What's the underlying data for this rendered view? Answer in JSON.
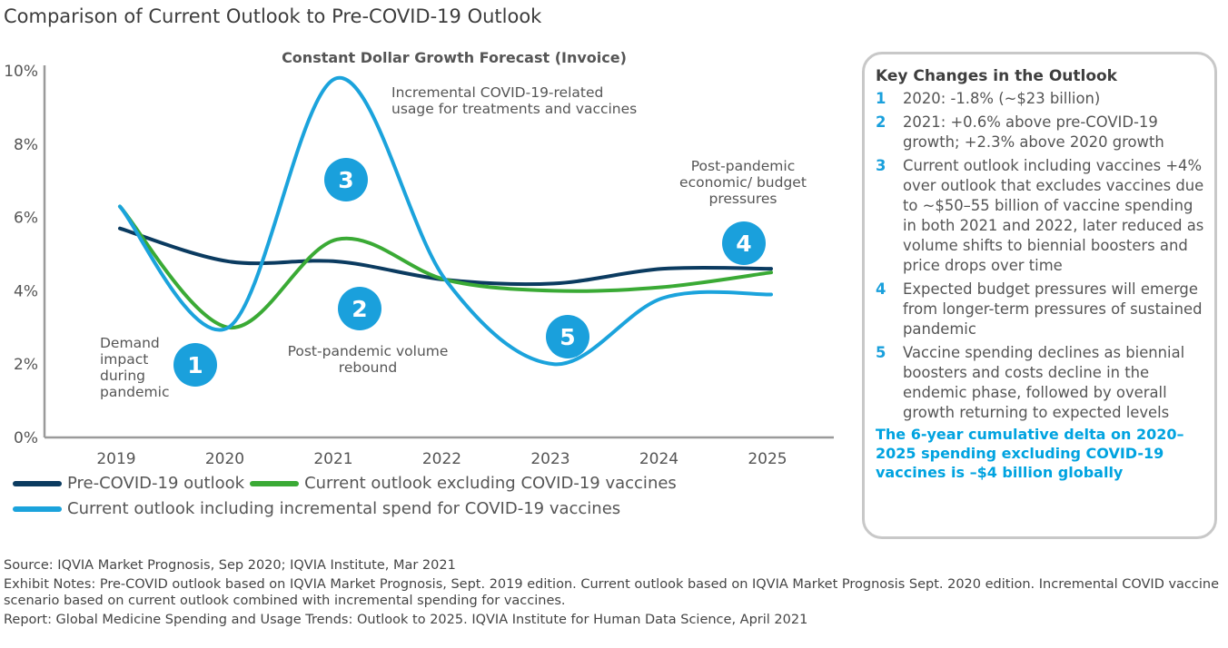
{
  "title": "Comparison of Current Outlook to Pre-COVID-19 Outlook",
  "colors": {
    "pre": "#0b3b60",
    "excl": "#3aaa35",
    "incl": "#1ba3dc",
    "marker": "#1aa0dc",
    "axis": "#9a9a9a"
  },
  "chart_data": {
    "type": "line",
    "title": "Constant Dollar Growth Forecast (Invoice)",
    "xlabel": "",
    "ylabel": "",
    "categories": [
      "2019",
      "2020",
      "2021",
      "2022",
      "2023",
      "2024",
      "2025"
    ],
    "ylim": [
      0,
      10
    ],
    "yticks": [
      "0%",
      "2%",
      "4%",
      "6%",
      "8%",
      "10%"
    ],
    "series": [
      {
        "name": "Pre-COVID-19 outlook",
        "values": [
          5.7,
          4.8,
          4.8,
          4.3,
          4.2,
          4.6,
          4.6
        ],
        "color": "#0b3b60"
      },
      {
        "name": "Current outlook excluding COVID-19 vaccines",
        "values": [
          6.3,
          3.0,
          5.4,
          4.3,
          4.0,
          4.1,
          4.5
        ],
        "color": "#3aaa35"
      },
      {
        "name": "Current outlook including incremental spend for COVID-19 vaccines",
        "values": [
          6.3,
          3.0,
          9.8,
          4.3,
          2.0,
          3.8,
          3.9
        ],
        "color": "#1ba3dc"
      }
    ],
    "annotations": [
      {
        "id": "1",
        "label": "Demand impact during pandemic",
        "lines": [
          "Demand",
          "impact",
          "during",
          "pandemic"
        ]
      },
      {
        "id": "2",
        "label": "Post-pandemic volume rebound",
        "lines": [
          "Post-pandemic volume",
          "rebound"
        ]
      },
      {
        "id": "3",
        "label": "Incremental COVID-19-related usage for treatments and vaccines",
        "lines": [
          "Incremental COVID-19-related",
          "usage for treatments and vaccines"
        ]
      },
      {
        "id": "4",
        "label": "Post-pandemic economic/ budget pressures",
        "lines": [
          "Post-pandemic",
          "economic/ budget",
          "pressures"
        ]
      },
      {
        "id": "5",
        "label": "",
        "lines": []
      }
    ]
  },
  "legend": {
    "pre": "Pre-COVID-19 outlook",
    "excl": "Current outlook excluding COVID-19 vaccines",
    "incl": "Current outlook including incremental spend for COVID-19 vaccines"
  },
  "panel": {
    "heading": "Key Changes in the Outlook",
    "items": [
      {
        "num": "1",
        "text": "2020: -1.8% (~$23 billion)"
      },
      {
        "num": "2",
        "text": "2021: +0.6% above pre-COVID-19 growth; +2.3% above 2020 growth"
      },
      {
        "num": "3",
        "text": "Current outlook including vaccines +4% over outlook that excludes vaccines due to ~$50–55 billion of vaccine spending in both 2021 and 2022, later reduced as volume shifts to biennial boosters and price drops over time"
      },
      {
        "num": "4",
        "text": "Expected budget pressures will emerge from longer-term pressures of sustained pandemic"
      },
      {
        "num": "5",
        "text": "Vaccine spending declines as biennial boosters and costs decline in the endemic phase, followed by overall growth returning to expected levels"
      }
    ],
    "summary": "The 6-year cumulative delta on 2020–2025 spending excluding COVID-19 vaccines is –$4 billion  globally"
  },
  "notes": {
    "source": "Source: IQVIA Market Prognosis, Sep 2020; IQVIA Institute, Mar 2021",
    "exhibit": "Exhibit Notes: Pre-COVID outlook based on IQVIA Market Prognosis, Sept. 2019 edition. Current outlook based on IQVIA Market Prognosis Sept. 2020 edition. Incremental COVID vaccine scenario based on current outlook combined with incremental spending for vaccines.",
    "report": "Report: Global Medicine Spending and Usage Trends: Outlook to 2025. IQVIA Institute for Human Data Science, April 2021"
  }
}
